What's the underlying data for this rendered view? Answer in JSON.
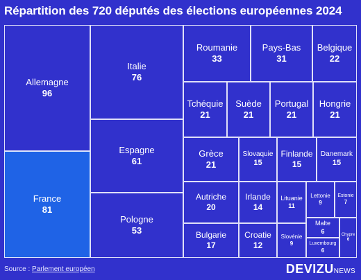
{
  "header": {
    "title": "Répartition des 720 députés des élections européennes 2024"
  },
  "footer": {
    "source_prefix": "Source : ",
    "source_link": "Parlement européen"
  },
  "brand": {
    "name": "DEVIZU",
    "suffix": "NEWS"
  },
  "colors": {
    "background": "#3131cc",
    "cell": "#3131cc",
    "highlight": "#1f63e6",
    "border": "#ffffff"
  },
  "chart_data": {
    "type": "treemap",
    "title": "Répartition des 720 députés des élections européennes 2024",
    "total": 720,
    "highlight": "France",
    "items": [
      {
        "name": "Allemagne",
        "value": 96
      },
      {
        "name": "France",
        "value": 81
      },
      {
        "name": "Italie",
        "value": 76
      },
      {
        "name": "Espagne",
        "value": 61
      },
      {
        "name": "Pologne",
        "value": 53
      },
      {
        "name": "Roumanie",
        "value": 33
      },
      {
        "name": "Pays-Bas",
        "value": 31
      },
      {
        "name": "Belgique",
        "value": 22
      },
      {
        "name": "Tchéquie",
        "value": 21
      },
      {
        "name": "Suède",
        "value": 21
      },
      {
        "name": "Portugal",
        "value": 21
      },
      {
        "name": "Hongrie",
        "value": 21
      },
      {
        "name": "Grèce",
        "value": 21
      },
      {
        "name": "Slovaquie",
        "value": 15
      },
      {
        "name": "Finlande",
        "value": 15
      },
      {
        "name": "Danemark",
        "value": 15
      },
      {
        "name": "Autriche",
        "value": 20
      },
      {
        "name": "Irlande",
        "value": 14
      },
      {
        "name": "Lituanie",
        "value": 11
      },
      {
        "name": "Lettonie",
        "value": 9
      },
      {
        "name": "Estonie",
        "value": 7
      },
      {
        "name": "Bulgarie",
        "value": 17
      },
      {
        "name": "Croatie",
        "value": 12
      },
      {
        "name": "Slovénie",
        "value": 9
      },
      {
        "name": "Malte",
        "value": 6
      },
      {
        "name": "Luxembourg",
        "value": 6
      },
      {
        "name": "Chypre",
        "value": 6
      }
    ]
  }
}
